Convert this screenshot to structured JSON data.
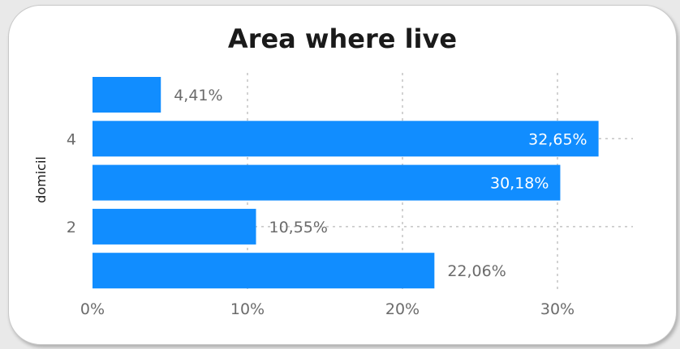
{
  "chart_data": {
    "type": "bar",
    "orientation": "horizontal",
    "title": "Area where live",
    "ylabel": "domicil",
    "xlabel": "",
    "categories": [
      "",
      "4",
      "",
      "2",
      ""
    ],
    "values": [
      4.41,
      32.65,
      30.18,
      10.55,
      22.06
    ],
    "data_labels": [
      "4,41%",
      "32,65%",
      "30,18%",
      "10,55%",
      "22,06%"
    ],
    "x_ticks": [
      "0%",
      "10%",
      "20%",
      "30%"
    ],
    "x_tick_values": [
      0,
      10,
      20,
      30
    ],
    "xlim": [
      0,
      35
    ],
    "grid": true,
    "bar_color": "#118dff"
  }
}
